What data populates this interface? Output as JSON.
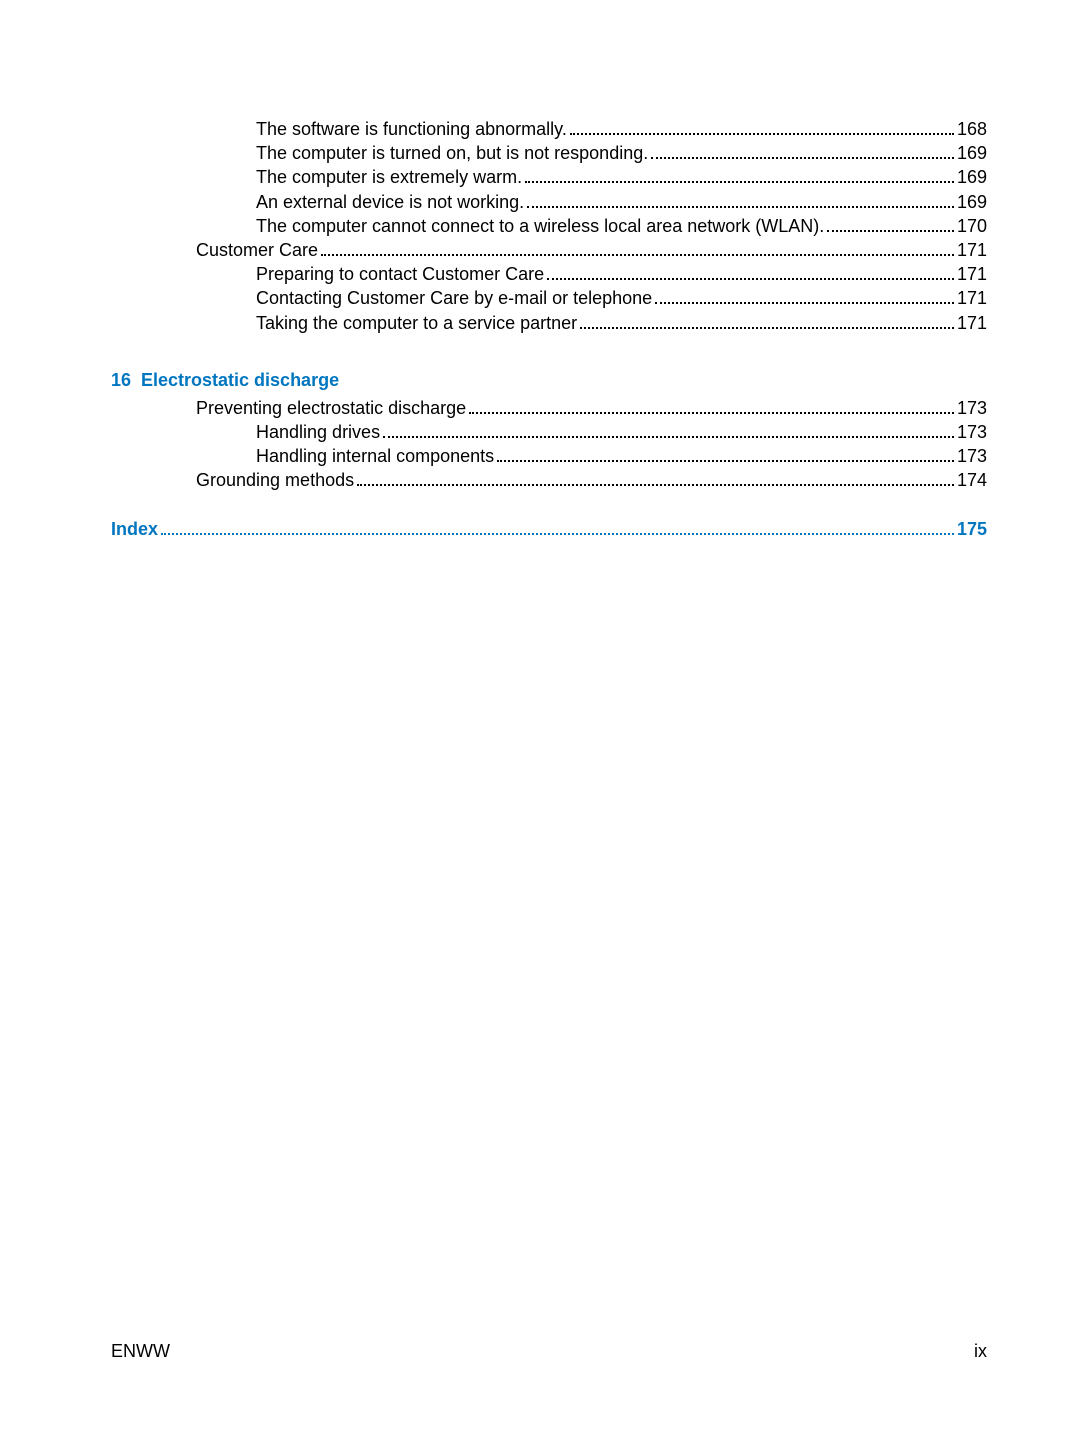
{
  "toc": {
    "block1": [
      {
        "indent": 2,
        "label": "The software is functioning abnormally.",
        "page": "168"
      },
      {
        "indent": 2,
        "label": "The computer is turned on, but is not responding.",
        "page": "169"
      },
      {
        "indent": 2,
        "label": "The computer is extremely warm.",
        "page": "169"
      },
      {
        "indent": 2,
        "label": "An external device is not working.",
        "page": "169"
      },
      {
        "indent": 2,
        "label": "The computer cannot connect to a wireless local area network (WLAN).",
        "page": "170"
      },
      {
        "indent": 1,
        "label": "Customer Care",
        "page": "171"
      },
      {
        "indent": 2,
        "label": "Preparing to contact Customer Care",
        "page": "171"
      },
      {
        "indent": 2,
        "label": "Contacting Customer Care by e-mail or telephone",
        "page": "171"
      },
      {
        "indent": 2,
        "label": "Taking the computer to a service partner",
        "page": "171"
      }
    ],
    "section16": {
      "number": "16",
      "title": "Electrostatic discharge",
      "entries": [
        {
          "indent": 1,
          "label": "Preventing electrostatic discharge",
          "page": "173"
        },
        {
          "indent": 2,
          "label": "Handling drives",
          "page": "173"
        },
        {
          "indent": 2,
          "label": "Handling internal components",
          "page": "173"
        },
        {
          "indent": 1,
          "label": "Grounding methods",
          "page": "174"
        }
      ]
    },
    "index": {
      "label": "Index",
      "page": "175"
    }
  },
  "footer": {
    "left": "ENWW",
    "right": "ix"
  }
}
